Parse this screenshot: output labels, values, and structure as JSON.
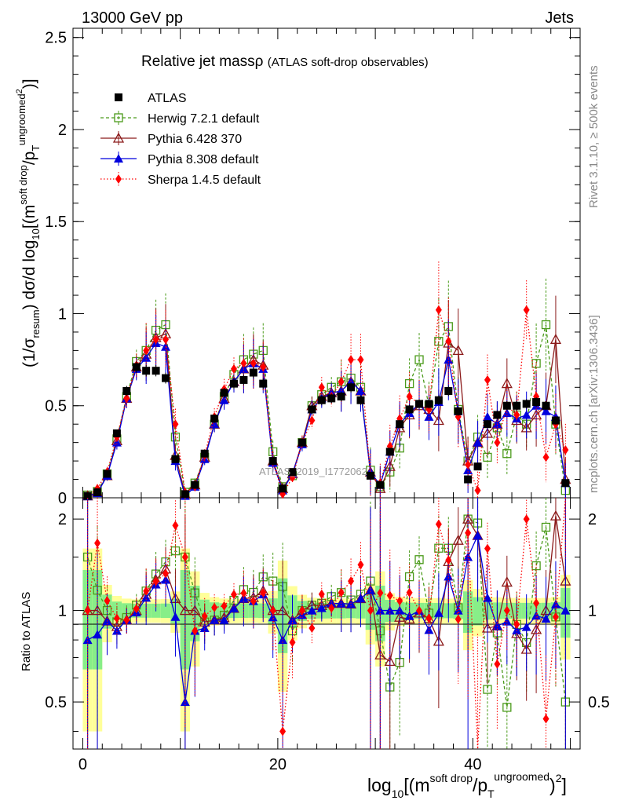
{
  "header": {
    "energy_label": "13000 GeV pp",
    "category_label": "Jets"
  },
  "side_labels": {
    "rivet": "Rivet 3.1.10, ≥ 500k events",
    "mcplots": "mcplots.cern.ch [arXiv:1306.3436]"
  },
  "watermark": "ATLAS_2019_I1772062",
  "chart_data": {
    "type": "line",
    "title": "Relative jet massρ",
    "subtitle": "(ATLAS soft-drop observables)",
    "xlabel": "log10[(m^{soft drop}/p_T^{ungroomed})^2]",
    "ylabel": "(1/σ_resum) dσ/d log10[(m^{soft drop}/p_T^{ungroomed})^2]",
    "xlabel_parts": {
      "lead": "log",
      "sub1": "10",
      "mid": "[(m",
      "sup1": "soft drop",
      "mid2": "/p",
      "sub2": "T",
      "sup2": "ungroomed",
      "tail": ")",
      "sup3": "2",
      "end": "]"
    },
    "ylabel_parts": {
      "p1": "(1/σ",
      "s1": "resum",
      "p2": ") dσ/d log",
      "s2": "10",
      "p3": "[(m",
      "u1": "soft drop",
      "p4": "/p",
      "s3": "T",
      "u2": "ungroomed",
      "u3": "2",
      "p5": ")]"
    },
    "xlim": [
      -1,
      51
    ],
    "ylim": [
      0,
      2.55
    ],
    "x_ticks": [
      "0",
      "20",
      "40"
    ],
    "y_ticks": [
      "0",
      "0.5",
      "1",
      "1.5",
      "2",
      "2.5"
    ],
    "ratio": {
      "ylabel": "Ratio to ATLAS",
      "ylim": [
        0.35,
        2.35
      ],
      "y_ticks": [
        "0.5",
        "1",
        "2"
      ]
    },
    "x": [
      0.5,
      1.5,
      2.5,
      3.5,
      4.5,
      5.5,
      6.5,
      7.5,
      8.5,
      9.5,
      10.5,
      11.5,
      12.5,
      13.5,
      14.5,
      15.5,
      16.5,
      17.5,
      18.5,
      19.5,
      20.5,
      21.5,
      22.5,
      23.5,
      24.5,
      25.5,
      26.5,
      27.5,
      28.5,
      29.5,
      30.5,
      31.5,
      32.5,
      33.5,
      34.5,
      35.5,
      36.5,
      37.5,
      38.5,
      39.5,
      40.5,
      41.5,
      42.5,
      43.5,
      44.5,
      45.5,
      46.5,
      47.5,
      48.5,
      49.5
    ],
    "series": [
      {
        "name": "ATLAS",
        "color": "#000000",
        "marker": "square-filled",
        "values": [
          0.01,
          0.03,
          0.13,
          0.35,
          0.58,
          0.71,
          0.69,
          0.69,
          0.65,
          0.21,
          0.02,
          0.07,
          0.24,
          0.43,
          0.57,
          0.62,
          0.64,
          0.68,
          0.62,
          0.2,
          0.05,
          0.14,
          0.3,
          0.48,
          0.53,
          0.54,
          0.55,
          0.6,
          0.53,
          0.12,
          0.07,
          0.25,
          0.4,
          0.48,
          0.51,
          0.51,
          0.53,
          0.58,
          0.47,
          0.1,
          0.17,
          0.4,
          0.45,
          0.5,
          0.5,
          0.51,
          0.52,
          0.5,
          0.42,
          0.08
        ]
      },
      {
        "name": "Herwig 7.2.1 default",
        "color": "#4a9a1a",
        "marker": "square-open",
        "line": "dashed",
        "values": [
          0.015,
          0.035,
          0.13,
          0.32,
          0.55,
          0.74,
          0.8,
          0.91,
          0.94,
          0.33,
          0.03,
          0.08,
          0.22,
          0.4,
          0.55,
          0.67,
          0.75,
          0.78,
          0.8,
          0.25,
          0.06,
          0.12,
          0.3,
          0.5,
          0.56,
          0.6,
          0.63,
          0.65,
          0.6,
          0.15,
          0.06,
          0.14,
          0.27,
          0.62,
          0.75,
          0.5,
          0.85,
          0.93,
          0.48,
          0.2,
          0.33,
          0.22,
          0.38,
          0.24,
          0.45,
          0.4,
          0.73,
          0.94,
          0.4,
          0.04
        ]
      },
      {
        "name": "Pythia 6.428 370",
        "color": "#8b1a1a",
        "marker": "triangle-open",
        "line": "solid",
        "values": [
          0.01,
          0.03,
          0.12,
          0.31,
          0.54,
          0.71,
          0.78,
          0.87,
          0.89,
          0.23,
          0.02,
          0.07,
          0.22,
          0.4,
          0.54,
          0.63,
          0.7,
          0.75,
          0.72,
          0.2,
          0.05,
          0.13,
          0.3,
          0.5,
          0.55,
          0.57,
          0.58,
          0.63,
          0.58,
          0.14,
          0.05,
          0.17,
          0.38,
          0.45,
          0.5,
          0.48,
          0.42,
          0.84,
          0.8,
          0.2,
          0.3,
          0.35,
          0.4,
          0.62,
          0.42,
          0.38,
          0.45,
          0.5,
          0.86,
          0.1
        ]
      },
      {
        "name": "Pythia 8.308 default",
        "color": "#0000dd",
        "marker": "triangle-filled",
        "line": "solid",
        "values": [
          0.008,
          0.025,
          0.12,
          0.3,
          0.54,
          0.7,
          0.76,
          0.84,
          0.82,
          0.2,
          0.01,
          0.06,
          0.21,
          0.4,
          0.53,
          0.63,
          0.7,
          0.73,
          0.7,
          0.19,
          0.04,
          0.13,
          0.29,
          0.48,
          0.54,
          0.57,
          0.58,
          0.63,
          0.58,
          0.14,
          0.07,
          0.25,
          0.4,
          0.46,
          0.51,
          0.44,
          0.52,
          0.75,
          0.47,
          0.15,
          0.3,
          0.44,
          0.4,
          0.46,
          0.43,
          0.45,
          0.5,
          0.47,
          0.44,
          0.08
        ]
      },
      {
        "name": "Sherpa 1.4.5 default",
        "color": "#ff0000",
        "marker": "diamond",
        "line": "dotted",
        "values": [
          0.01,
          0.05,
          0.14,
          0.33,
          0.54,
          0.72,
          0.8,
          0.86,
          0.86,
          0.4,
          0.03,
          0.06,
          0.23,
          0.44,
          0.59,
          0.7,
          0.73,
          0.73,
          0.71,
          0.2,
          0.02,
          0.11,
          0.3,
          0.42,
          0.6,
          0.55,
          0.63,
          0.75,
          0.75,
          0.12,
          0.08,
          0.28,
          0.43,
          0.55,
          0.51,
          0.48,
          1.02,
          0.85,
          0.44,
          0.18,
          0.04,
          0.64,
          0.3,
          0.5,
          0.45,
          1.02,
          0.55,
          0.22,
          0.4,
          0.26
        ]
      }
    ],
    "legend_placement": "top-left"
  }
}
